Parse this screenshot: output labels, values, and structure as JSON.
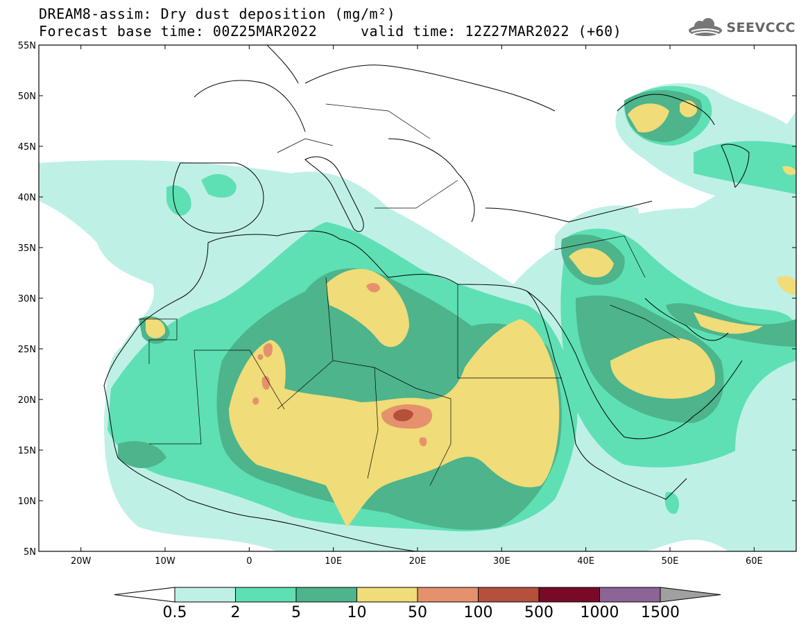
{
  "title": {
    "line1": "DREAM8-assim: Dry dust deposition (mg/m²)",
    "line2": "Forecast base time: 00Z25MAR2022     valid time: 12Z27MAR2022 (+60)"
  },
  "logo": {
    "text": "SEEVCCC",
    "icon": "cloud-icon"
  },
  "map": {
    "lon_range": [
      -25,
      65
    ],
    "lat_range": [
      5,
      55
    ],
    "lat_ticks": [
      {
        "value": 55,
        "label": "55N"
      },
      {
        "value": 50,
        "label": "50N"
      },
      {
        "value": 45,
        "label": "45N"
      },
      {
        "value": 40,
        "label": "40N"
      },
      {
        "value": 35,
        "label": "35N"
      },
      {
        "value": 30,
        "label": "30N"
      },
      {
        "value": 25,
        "label": "25N"
      },
      {
        "value": 20,
        "label": "20N"
      },
      {
        "value": 15,
        "label": "15N"
      },
      {
        "value": 10,
        "label": "10N"
      },
      {
        "value": 5,
        "label": "5N"
      }
    ],
    "lon_ticks": [
      {
        "value": -20,
        "label": "20W"
      },
      {
        "value": -10,
        "label": "10W"
      },
      {
        "value": 0,
        "label": "0"
      },
      {
        "value": 10,
        "label": "10E"
      },
      {
        "value": 20,
        "label": "20E"
      },
      {
        "value": 30,
        "label": "30E"
      },
      {
        "value": 40,
        "label": "40E"
      },
      {
        "value": 50,
        "label": "50E"
      },
      {
        "value": 60,
        "label": "60E"
      }
    ]
  },
  "colorbar": {
    "labels": [
      "0.5",
      "2",
      "5",
      "10",
      "50",
      "100",
      "500",
      "1000",
      "1500"
    ],
    "colors": [
      "#bff0e6",
      "#5ee0b4",
      "#4db48c",
      "#f0dc78",
      "#e6916e",
      "#b4503c",
      "#780a28",
      "#8c6496"
    ],
    "under_color": "#ffffff",
    "over_color": "#a0a0a0"
  }
}
